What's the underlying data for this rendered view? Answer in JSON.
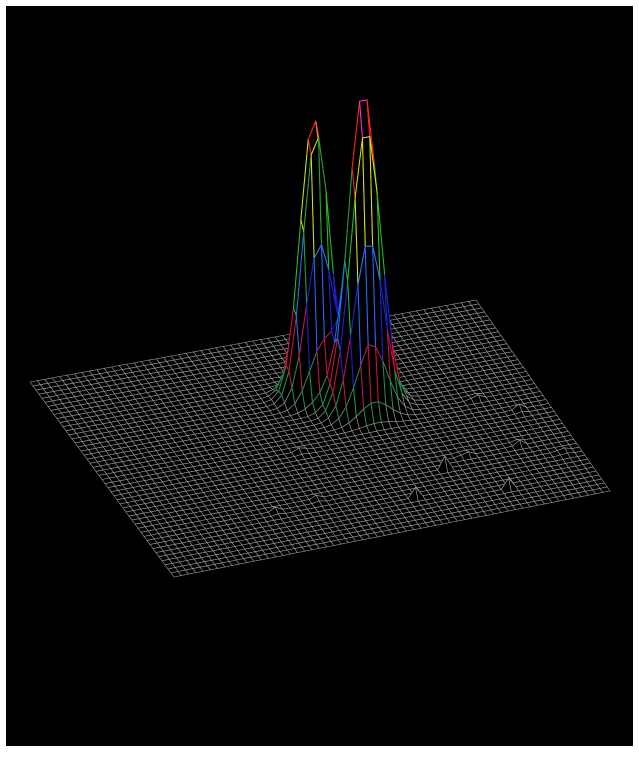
{
  "chart_data": {
    "type": "surface",
    "title": "",
    "xlabel": "",
    "ylabel": "",
    "zlabel": "",
    "grid": {
      "cols": 60,
      "rows": 48
    },
    "z_range": [
      0,
      1
    ],
    "peaks": [
      {
        "center": [
          0.545,
          0.3
        ],
        "height": 0.9,
        "width": 0.03
      },
      {
        "center": [
          0.625,
          0.4
        ],
        "height": 1.0,
        "width": 0.034
      }
    ],
    "noise_bumps": [
      {
        "at": [
          0.44,
          0.55
        ],
        "height": 0.05
      },
      {
        "at": [
          0.62,
          0.45
        ],
        "height": 0.04
      },
      {
        "at": [
          0.7,
          0.75
        ],
        "height": 0.04
      },
      {
        "at": [
          0.76,
          0.7
        ],
        "height": 0.05
      },
      {
        "at": [
          0.86,
          0.45
        ],
        "height": 0.06
      },
      {
        "at": [
          0.93,
          0.55
        ],
        "height": 0.05
      },
      {
        "at": [
          0.96,
          0.78
        ],
        "height": 0.04
      },
      {
        "at": [
          0.4,
          0.78
        ],
        "height": 0.03
      },
      {
        "at": [
          0.3,
          0.8
        ],
        "height": 0.03
      },
      {
        "at": [
          0.6,
          0.85
        ],
        "height": 0.04
      },
      {
        "at": [
          0.8,
          0.9
        ],
        "height": 0.04
      },
      {
        "at": [
          0.88,
          0.7
        ],
        "height": 0.05
      }
    ],
    "colors": {
      "background": "#000000",
      "base_grid": "#9a9a9a",
      "bands": [
        "#9a9a9a",
        "#1b8f47",
        "#c4163c",
        "#1c1cd8",
        "#1e6fff",
        "#23c01e",
        "#1aa33a",
        "#d8e415",
        "#ff7a10",
        "#ff1a1a",
        "#ff2bd6"
      ]
    }
  }
}
